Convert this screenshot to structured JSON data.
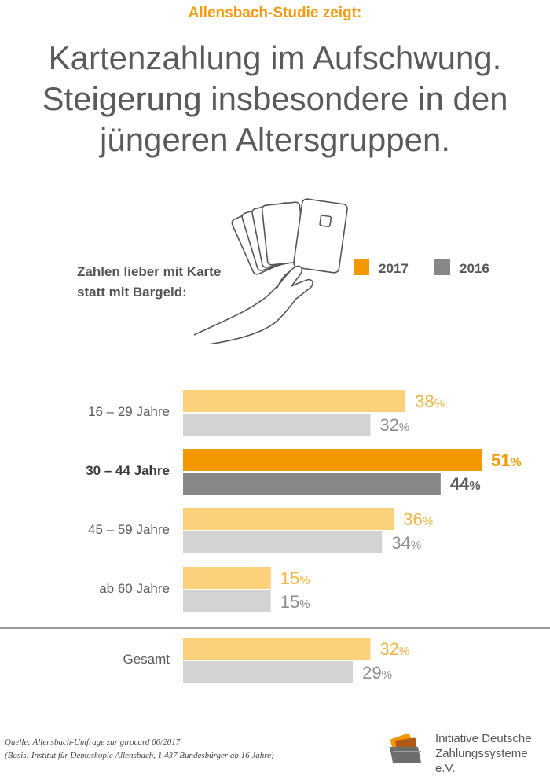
{
  "header": {
    "kicker": "Allensbach-Studie zeigt:",
    "headline_lines": [
      "Kartenzahlung im Aufschwung.",
      "Steigerung insbesondere in den",
      "jüngeren Altersgruppen."
    ]
  },
  "question_lines": [
    "Zahlen lieber mit Karte",
    "statt mit Bargeld:"
  ],
  "colors": {
    "y2017_light": "#fbd27b",
    "y2016_light": "#d3d3d3",
    "y2017_strong": "#f39800",
    "y2016_strong": "#878787",
    "label_2017": "#f3b341",
    "label_2016": "#8e8e8e"
  },
  "chart_data": {
    "type": "bar",
    "orientation": "horizontal",
    "categories": [
      "16 – 29 Jahre",
      "30 – 44 Jahre",
      "45 – 59 Jahre",
      "ab 60 Jahre",
      "Gesamt"
    ],
    "highlighted_category": "30 – 44 Jahre",
    "series": [
      {
        "name": "2017",
        "values": [
          38,
          51,
          36,
          15,
          32
        ]
      },
      {
        "name": "2016",
        "values": [
          32,
          44,
          34,
          15,
          29
        ]
      }
    ],
    "unit": "%",
    "xlim": [
      0,
      51
    ]
  },
  "footer": {
    "source_lines": [
      "Quelle: Allensbach-Umfrage zur girocard 06/2017",
      "(Basis: Institut für Demoskopie Allensbach, 1.437 Bundesbürger ab 16 Jahre)"
    ],
    "logo_lines": [
      "Initiative Deutsche",
      "Zahlungssysteme e.V."
    ]
  }
}
